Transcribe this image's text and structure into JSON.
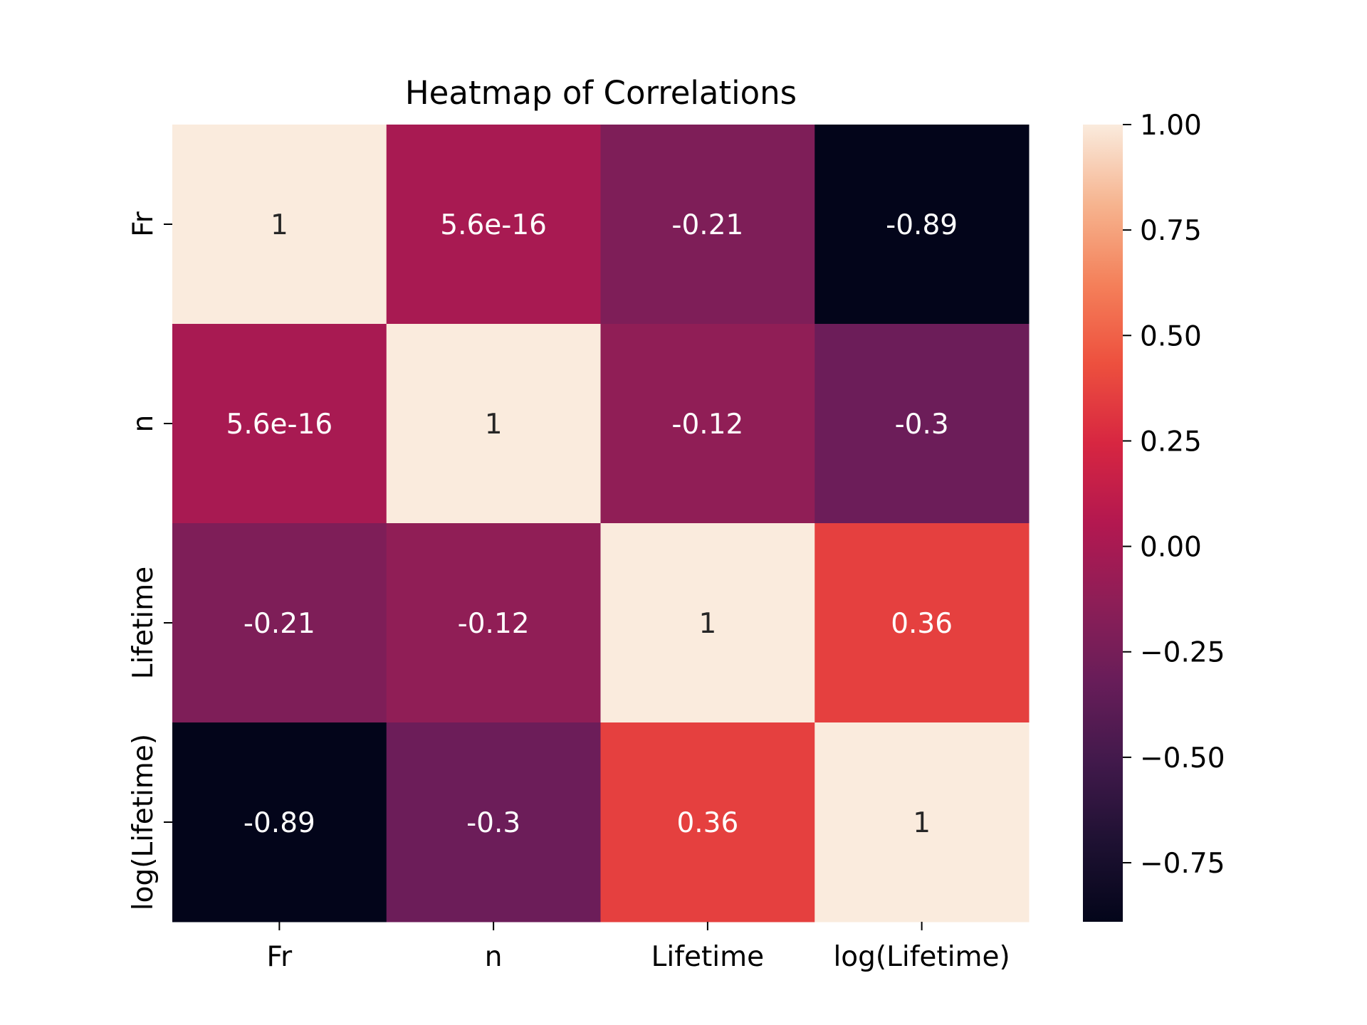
{
  "chart_data": {
    "type": "heatmap",
    "title": "Heatmap of Correlations",
    "xlabel": "",
    "ylabel": "",
    "x_categories": [
      "Fr",
      "n",
      "Lifetime",
      "log(Lifetime)"
    ],
    "y_categories": [
      "Fr",
      "n",
      "Lifetime",
      "log(Lifetime)"
    ],
    "values": [
      [
        1,
        5.6e-16,
        -0.21,
        -0.89
      ],
      [
        5.6e-16,
        1,
        -0.12,
        -0.3
      ],
      [
        -0.21,
        -0.12,
        1,
        0.36
      ],
      [
        -0.89,
        -0.3,
        0.36,
        1
      ]
    ],
    "annotations": [
      [
        "1",
        "5.6e-16",
        "-0.21",
        "-0.89"
      ],
      [
        "5.6e-16",
        "1",
        "-0.12",
        "-0.3"
      ],
      [
        "-0.21",
        "-0.12",
        "1",
        "0.36"
      ],
      [
        "-0.89",
        "-0.3",
        "0.36",
        "1"
      ]
    ],
    "colormap": "rocket",
    "colorbar": {
      "vmin": -0.89,
      "vmax": 1.0,
      "ticks": [
        1.0,
        0.75,
        0.5,
        0.25,
        0.0,
        -0.25,
        -0.5,
        -0.75
      ],
      "tick_labels": [
        "1.00",
        "0.75",
        "0.50",
        "0.25",
        "0.00",
        "−0.25",
        "−0.50",
        "−0.75"
      ]
    },
    "grid": false
  }
}
